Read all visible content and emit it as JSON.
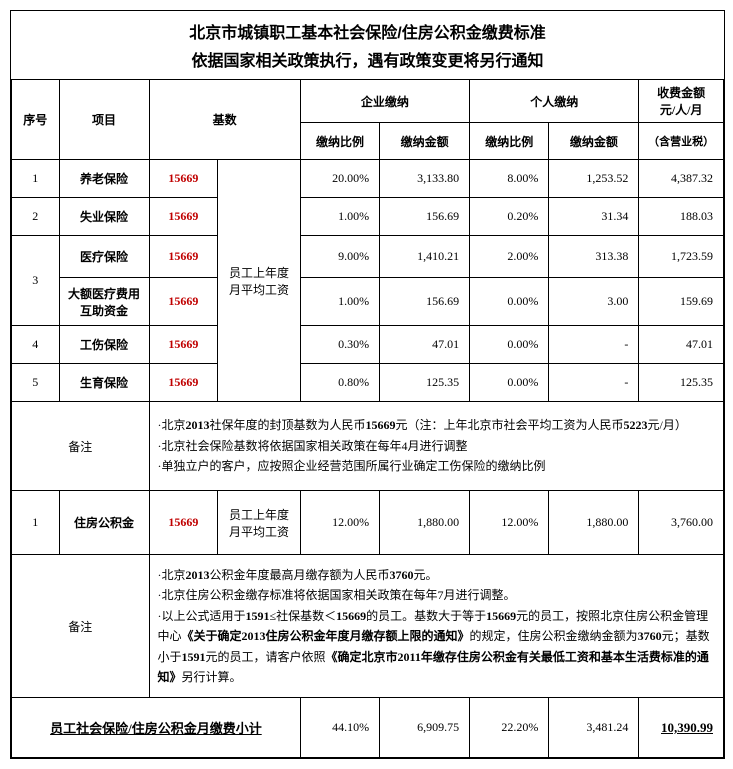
{
  "title": "北京市城镇职工基本社会保险/住房公积金缴费标准",
  "subtitle": "依据国家相关政策执行，遇有政策变更将另行通知",
  "headers": {
    "seq": "序号",
    "item": "项目",
    "base": "基数",
    "company": "企业缴纳",
    "personal": "个人缴纳",
    "fee": "收费金额",
    "fee_unit": "元/人/月",
    "fee_note": "（含营业税）",
    "rate": "缴纳比例",
    "amount": "缴纳金额"
  },
  "base_desc": "员工上年度月平均工资",
  "rows": [
    {
      "seq": "1",
      "item": "养老保险",
      "base": "15669",
      "c_rate": "20.00%",
      "c_amt": "3,133.80",
      "p_rate": "8.00%",
      "p_amt": "1,253.52",
      "fee": "4,387.32"
    },
    {
      "seq": "2",
      "item": "失业保险",
      "base": "15669",
      "c_rate": "1.00%",
      "c_amt": "156.69",
      "p_rate": "0.20%",
      "p_amt": "31.34",
      "fee": "188.03"
    },
    {
      "seq": "3",
      "item": "医疗保险",
      "base": "15669",
      "c_rate": "9.00%",
      "c_amt": "1,410.21",
      "p_rate": "2.00%",
      "p_amt": "313.38",
      "fee": "1,723.59"
    },
    {
      "seq": "",
      "item": "大额医疗费用互助资金",
      "base": "15669",
      "c_rate": "1.00%",
      "c_amt": "156.69",
      "p_rate": "0.00%",
      "p_amt": "3.00",
      "fee": "159.69"
    },
    {
      "seq": "4",
      "item": "工伤保险",
      "base": "15669",
      "c_rate": "0.30%",
      "c_amt": "47.01",
      "p_rate": "0.00%",
      "p_amt": "-",
      "fee": "47.01"
    },
    {
      "seq": "5",
      "item": "生育保险",
      "base": "15669",
      "c_rate": "0.80%",
      "c_amt": "125.35",
      "p_rate": "0.00%",
      "p_amt": "-",
      "fee": "125.35"
    }
  ],
  "note1_label": "备注",
  "note1_lines": [
    "·北京<b>2013</b>社保年度的封顶基数为人民币<b>15669</b>元（注：上年北京市社会平均工资为人民币<b>5223</b>元/月）",
    "·北京社会保险基数将依据国家相关政策在每年4月进行调整",
    "·单独立户的客户，应按照企业经营范围所属行业确定工伤保险的缴纳比例"
  ],
  "fund_row": {
    "seq": "1",
    "item": "住房公积金",
    "base": "15669",
    "base_desc": "员工上年度月平均工资",
    "c_rate": "12.00%",
    "c_amt": "1,880.00",
    "p_rate": "12.00%",
    "p_amt": "1,880.00",
    "fee": "3,760.00"
  },
  "note2_label": "备注",
  "note2_lines": [
    "·北京<b>2013</b>公积金年度最高月缴存额为人民币<b>3760</b>元。",
    "·北京住房公积金缴存标准将依据国家相关政策在每年7月进行调整。",
    "·以上公式适用于<b>1591</b>≤社保基数＜<b>15669</b>的员工。基数大于等于<b>15669</b>元的员工，按照北京住房公积金管理中心<b>《关于确定2013住房公积金年度月缴存额上限的通知》</b>的规定，住房公积金缴纳金额为<b>3760</b>元；基数小于<b>1591</b>元的员工，请客户依照<b>《确定北京市2011年缴存住房公积金有关最低工资和基本生活费标准的通知》</b>另行计算。"
  ],
  "total": {
    "label": "员工社会保险/住房公积金月缴费小计",
    "c_rate": "44.10%",
    "c_amt": "6,909.75",
    "p_rate": "22.20%",
    "p_amt": "3,481.24",
    "fee": "10,390.99"
  }
}
